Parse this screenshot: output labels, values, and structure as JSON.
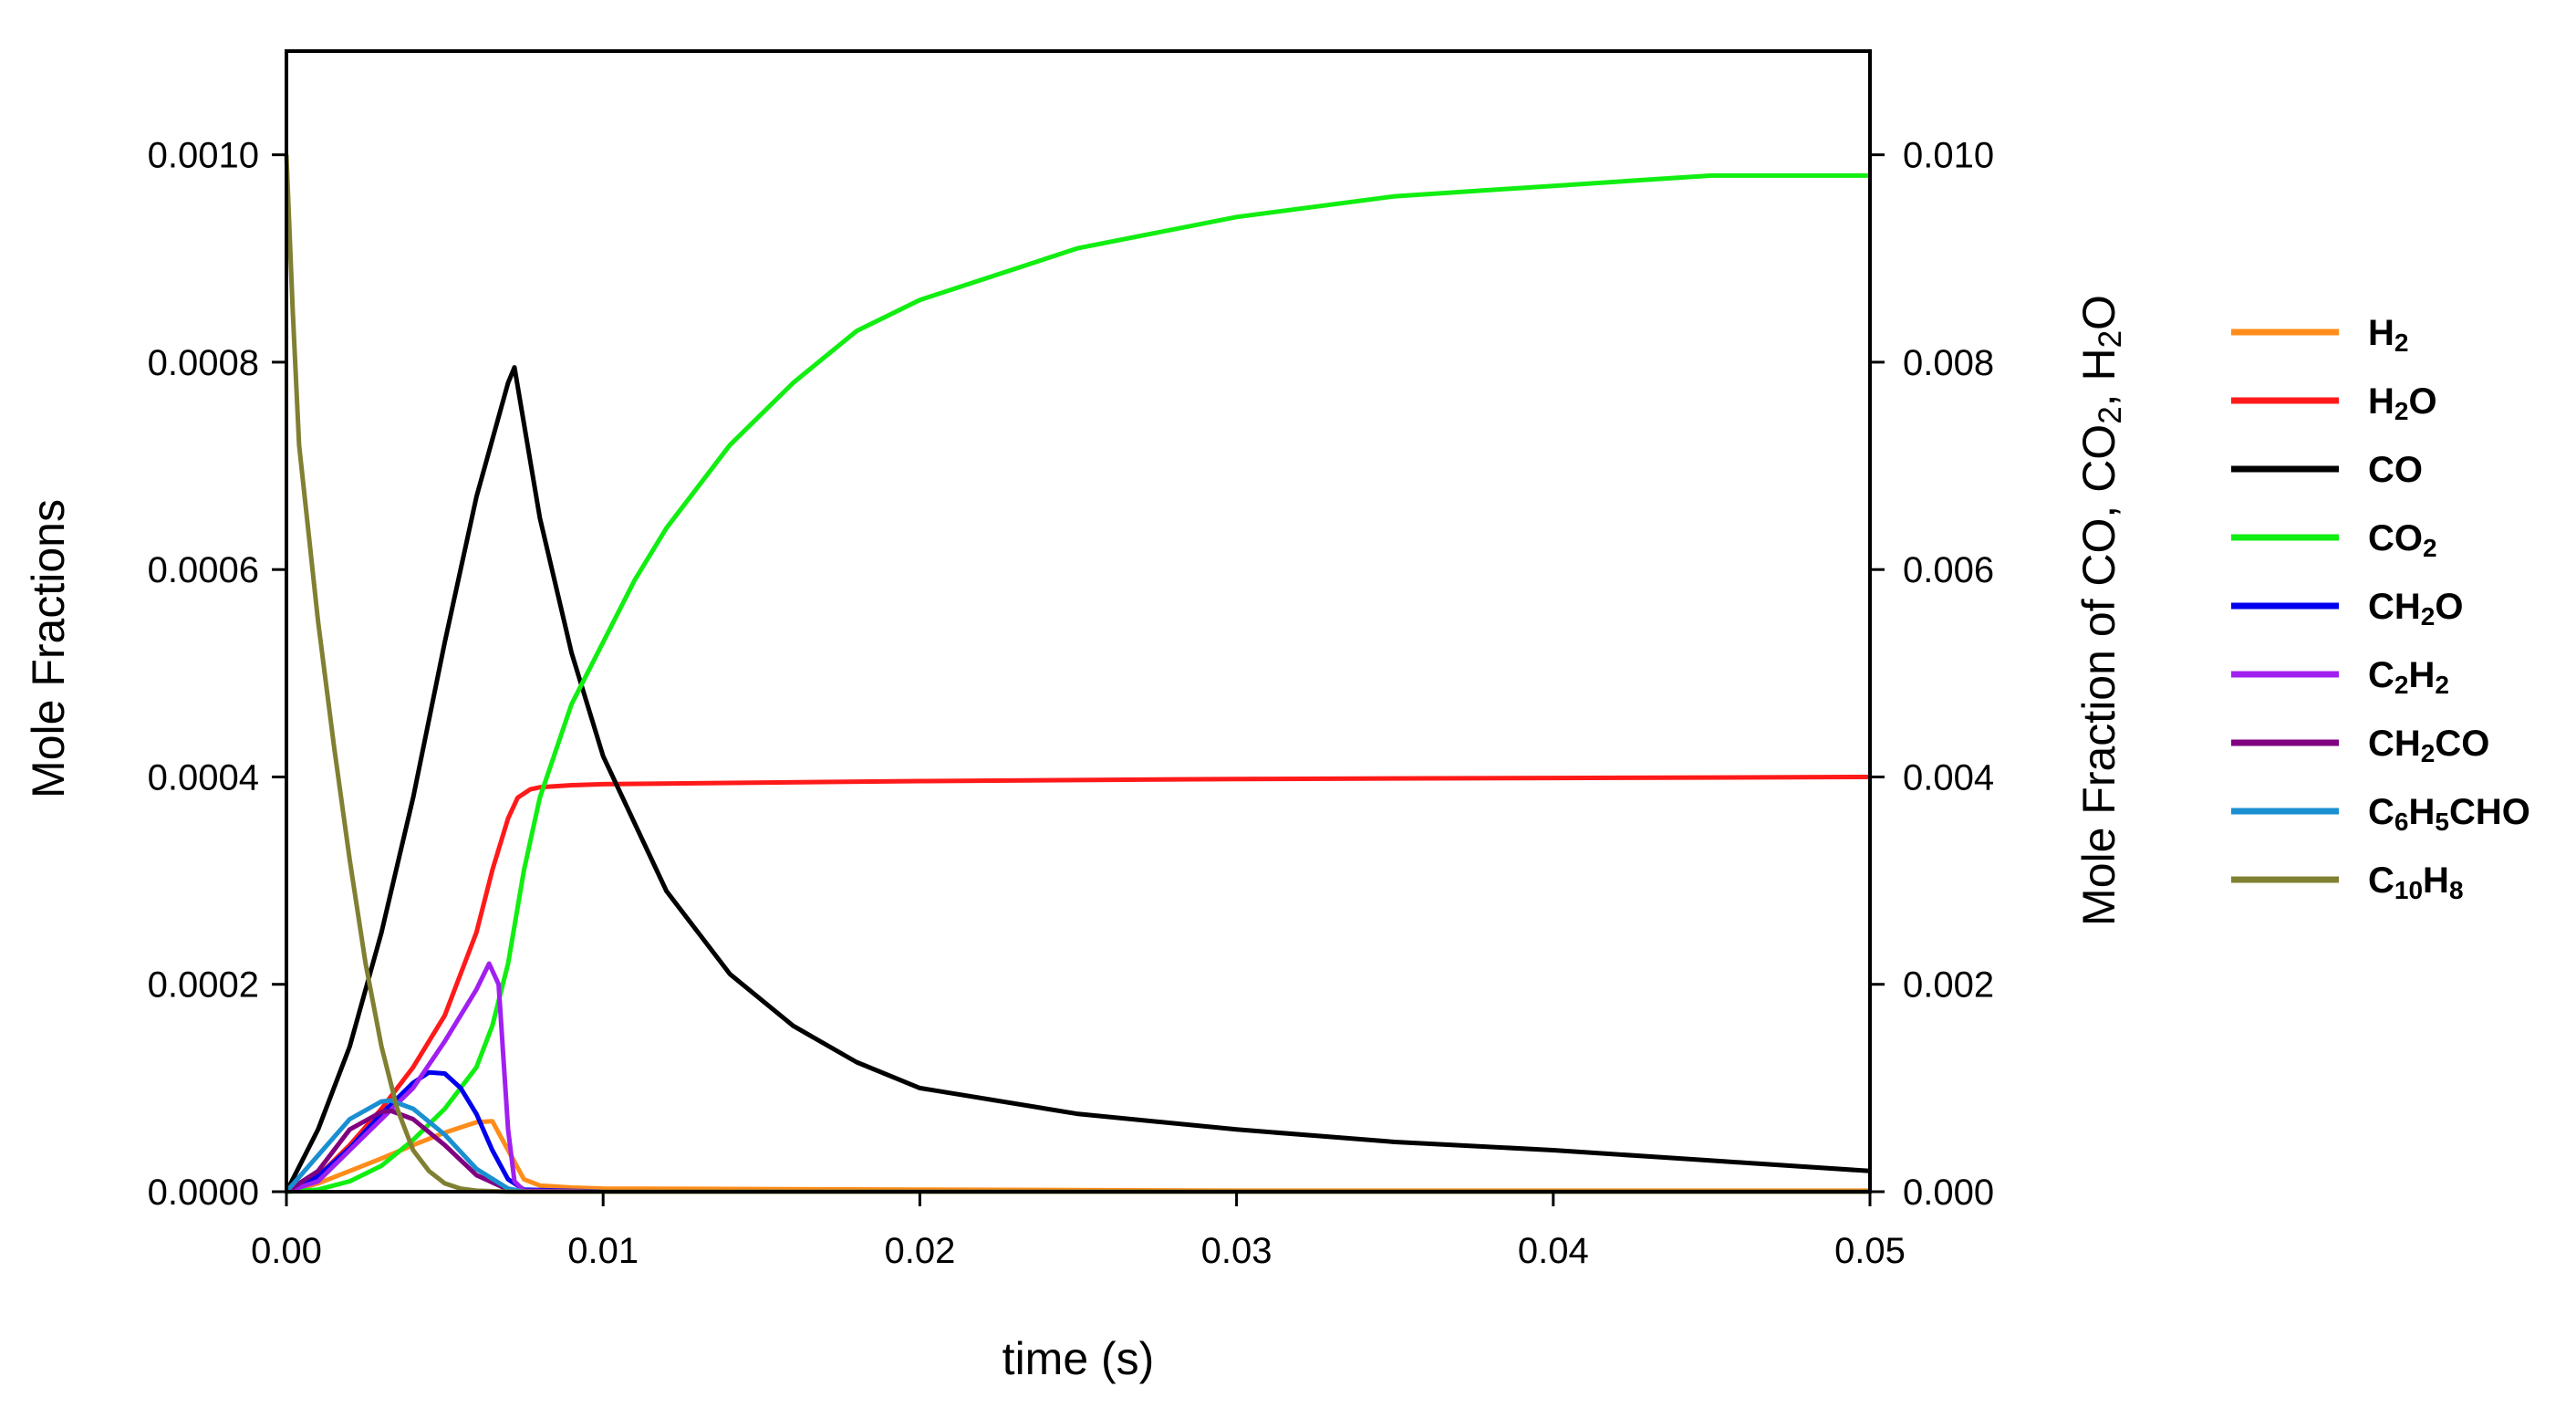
{
  "chart_data": {
    "type": "line",
    "xlabel": "time (s)",
    "ylabel": "Mole Fractions",
    "y2label": {
      "parts": [
        [
          "Mole Fraction of CO, CO",
          ""
        ],
        [
          "2",
          "sub"
        ],
        [
          ", H",
          ""
        ],
        [
          "2",
          "sub"
        ],
        [
          "O",
          ""
        ]
      ]
    },
    "xlim": [
      0,
      0.05
    ],
    "ylim": [
      0,
      0.0011
    ],
    "y2lim": [
      0,
      0.011
    ],
    "xticks": [
      "0.00",
      "0.01",
      "0.02",
      "0.03",
      "0.04",
      "0.05"
    ],
    "yticks": [
      "0.0000",
      "0.0002",
      "0.0004",
      "0.0006",
      "0.0008",
      "0.0010"
    ],
    "y2ticks": [
      "0.000",
      "0.002",
      "0.004",
      "0.006",
      "0.008",
      "0.010"
    ],
    "grid": false,
    "legend_position": "right",
    "series": [
      {
        "name": "H2",
        "label_parts": [
          [
            "H",
            ""
          ],
          [
            "2",
            "sub"
          ]
        ],
        "color": "#ff8c1a",
        "axis": "left",
        "x": [
          0,
          0.001,
          0.002,
          0.003,
          0.004,
          0.005,
          0.006,
          0.0065,
          0.007,
          0.0075,
          0.008,
          0.009,
          0.01,
          0.02,
          0.03,
          0.04,
          0.05
        ],
        "y": [
          0,
          8e-06,
          2e-05,
          3.2e-05,
          4.5e-05,
          5.7e-05,
          6.7e-05,
          6.8e-05,
          4e-05,
          1.2e-05,
          6e-06,
          4e-06,
          3e-06,
          2e-06,
          1e-06,
          1e-06,
          1e-06
        ]
      },
      {
        "name": "H2O",
        "label_parts": [
          [
            "H",
            ""
          ],
          [
            "2",
            "sub"
          ],
          [
            "O",
            ""
          ]
        ],
        "color": "#ff1a1a",
        "axis": "right",
        "x": [
          0,
          0.001,
          0.002,
          0.003,
          0.004,
          0.005,
          0.006,
          0.0065,
          0.007,
          0.0073,
          0.0077,
          0.008,
          0.009,
          0.01,
          0.02,
          0.03,
          0.04,
          0.05
        ],
        "y": [
          0,
          0.00015,
          0.00045,
          0.0008,
          0.0012,
          0.0017,
          0.0025,
          0.0031,
          0.0036,
          0.0038,
          0.00388,
          0.0039,
          0.00392,
          0.00393,
          0.00396,
          0.00398,
          0.00399,
          0.004
        ]
      },
      {
        "name": "CO",
        "label_parts": [
          [
            "C",
            ""
          ],
          [
            "O",
            ""
          ]
        ],
        "color": "#000000",
        "axis": "right",
        "x": [
          0,
          0.001,
          0.002,
          0.003,
          0.004,
          0.005,
          0.006,
          0.007,
          0.0072,
          0.008,
          0.009,
          0.01,
          0.012,
          0.014,
          0.016,
          0.018,
          0.02,
          0.025,
          0.03,
          0.035,
          0.04,
          0.045,
          0.05
        ],
        "y": [
          0,
          0.0006,
          0.0014,
          0.0025,
          0.0038,
          0.0053,
          0.0067,
          0.0078,
          0.00795,
          0.0065,
          0.0052,
          0.0042,
          0.0029,
          0.0021,
          0.0016,
          0.00125,
          0.001,
          0.00075,
          0.0006,
          0.00048,
          0.0004,
          0.0003,
          0.0002
        ]
      },
      {
        "name": "CO2",
        "label_parts": [
          [
            "CO",
            ""
          ],
          [
            "2",
            "sub"
          ]
        ],
        "color": "#11ee11",
        "axis": "right",
        "x": [
          0,
          0.001,
          0.002,
          0.003,
          0.004,
          0.005,
          0.006,
          0.0065,
          0.007,
          0.0075,
          0.008,
          0.009,
          0.01,
          0.011,
          0.012,
          0.014,
          0.016,
          0.018,
          0.02,
          0.025,
          0.03,
          0.035,
          0.04,
          0.045,
          0.05
        ],
        "y": [
          0,
          2e-05,
          0.0001,
          0.00025,
          0.0005,
          0.0008,
          0.0012,
          0.0016,
          0.0022,
          0.0031,
          0.0038,
          0.0047,
          0.0053,
          0.0059,
          0.0064,
          0.0072,
          0.0078,
          0.0083,
          0.0086,
          0.0091,
          0.0094,
          0.0096,
          0.0097,
          0.0098,
          0.0098
        ]
      },
      {
        "name": "CH2O",
        "label_parts": [
          [
            "CH",
            ""
          ],
          [
            "2",
            "sub"
          ],
          [
            "O",
            ""
          ]
        ],
        "color": "#0000ee",
        "axis": "left",
        "x": [
          0,
          0.001,
          0.002,
          0.003,
          0.004,
          0.0045,
          0.005,
          0.0055,
          0.006,
          0.0065,
          0.007,
          0.0075,
          0.01,
          0.05
        ],
        "y": [
          0,
          1.5e-05,
          4.2e-05,
          7.5e-05,
          0.000105,
          0.000115,
          0.000114,
          0.0001,
          7.5e-05,
          4e-05,
          1.2e-05,
          2e-06,
          0,
          0
        ]
      },
      {
        "name": "C2H2",
        "label_parts": [
          [
            "C",
            ""
          ],
          [
            "2",
            "sub"
          ],
          [
            "H",
            ""
          ],
          [
            "2",
            "sub"
          ]
        ],
        "color": "#a020f0",
        "axis": "left",
        "x": [
          0,
          0.001,
          0.002,
          0.003,
          0.004,
          0.005,
          0.006,
          0.0064,
          0.0067,
          0.007,
          0.0072,
          0.0075,
          0.01,
          0.05
        ],
        "y": [
          0,
          1e-05,
          4e-05,
          7e-05,
          0.0001,
          0.000145,
          0.000195,
          0.00022,
          0.0002,
          6e-05,
          1e-05,
          1e-06,
          0,
          0
        ]
      },
      {
        "name": "CH2CO",
        "label_parts": [
          [
            "CH",
            ""
          ],
          [
            "2",
            "sub"
          ],
          [
            "CO",
            ""
          ]
        ],
        "color": "#800080",
        "axis": "left",
        "x": [
          0,
          0.001,
          0.002,
          0.003,
          0.0033,
          0.004,
          0.005,
          0.006,
          0.007,
          0.0075,
          0.01,
          0.05
        ],
        "y": [
          0,
          2e-05,
          6e-05,
          7.7e-05,
          7.8e-05,
          7e-05,
          4.5e-05,
          1.6e-05,
          2e-06,
          0,
          0,
          0
        ]
      },
      {
        "name": "C6H5CHO",
        "label_parts": [
          [
            "C",
            ""
          ],
          [
            "6",
            "sub"
          ],
          [
            "H",
            ""
          ],
          [
            "5",
            "sub"
          ],
          [
            "CHO",
            ""
          ]
        ],
        "color": "#1a8fd1",
        "axis": "left",
        "x": [
          0,
          0.001,
          0.002,
          0.003,
          0.0033,
          0.004,
          0.005,
          0.006,
          0.007,
          0.0075,
          0.01,
          0.05
        ],
        "y": [
          0,
          3.5e-05,
          7e-05,
          8.7e-05,
          8.8e-05,
          8e-05,
          5.5e-05,
          2.2e-05,
          3e-06,
          0,
          0,
          0
        ]
      },
      {
        "name": "C10H8",
        "label_parts": [
          [
            "C",
            ""
          ],
          [
            "10",
            "sub"
          ],
          [
            "H",
            ""
          ],
          [
            "8",
            "sub"
          ]
        ],
        "color": "#808033",
        "axis": "left",
        "x": [
          0,
          0.0002,
          0.0004,
          0.001,
          0.0015,
          0.002,
          0.0025,
          0.003,
          0.0035,
          0.004,
          0.0045,
          0.005,
          0.0055,
          0.006,
          0.007,
          0.01,
          0.05
        ],
        "y": [
          0.001,
          0.00085,
          0.00072,
          0.00055,
          0.00043,
          0.00032,
          0.00022,
          0.00014,
          8e-05,
          4e-05,
          2e-05,
          8e-06,
          3e-06,
          1e-06,
          0,
          0,
          0
        ]
      }
    ]
  }
}
